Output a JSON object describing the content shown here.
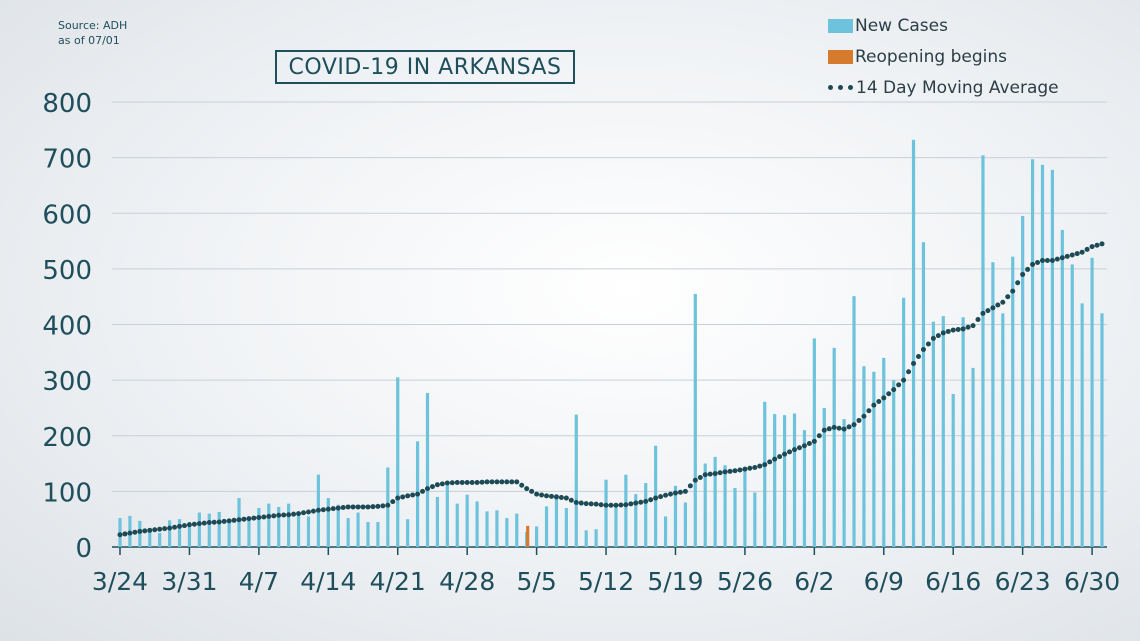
{
  "source": {
    "line1": "Source: ADH",
    "line2": "as of 07/01"
  },
  "title": "COVID-19 IN ARKANSAS",
  "legend": {
    "new_cases": "New Cases",
    "reopening": "Reopening begins",
    "moving_average": "14 Day Moving Average"
  },
  "colors": {
    "new_cases": "#6ec3dc",
    "reopening": "#d67a2e",
    "moving_average": "#1d4a55",
    "axis_text": "#1f4e5c"
  },
  "chart_data": {
    "type": "bar",
    "title": "COVID-19 IN ARKANSAS",
    "xlabel": "",
    "ylabel": "",
    "ylim": [
      0,
      800
    ],
    "yticks": [
      0,
      100,
      200,
      300,
      400,
      500,
      600,
      700,
      800
    ],
    "grid": true,
    "legend_position": "top-right",
    "start_date": "3/24",
    "xtick_labels": [
      "3/24",
      "3/31",
      "4/7",
      "4/14",
      "4/21",
      "4/28",
      "5/5",
      "5/12",
      "5/19",
      "5/26",
      "6/2",
      "6/9",
      "6/16",
      "6/23",
      "6/30"
    ],
    "highlight": {
      "date": "5/4",
      "label": "Reopening begins"
    },
    "series": [
      {
        "name": "New Cases",
        "type": "bar",
        "values": [
          52,
          56,
          47,
          34,
          25,
          48,
          50,
          45,
          62,
          60,
          63,
          50,
          88,
          50,
          70,
          78,
          72,
          78,
          60,
          55,
          130,
          88,
          76,
          52,
          62,
          45,
          45,
          143,
          305,
          50,
          190,
          277,
          90,
          115,
          78,
          94,
          82,
          64,
          66,
          52,
          60,
          27,
          37,
          73,
          95,
          70,
          238,
          30,
          32,
          121,
          75,
          130,
          95,
          115,
          182,
          55,
          110,
          80,
          455,
          150,
          162,
          147,
          106,
          142,
          98,
          261,
          239,
          237,
          240,
          210,
          375,
          250,
          358,
          230,
          451,
          325,
          315,
          340,
          300,
          448,
          732,
          548,
          405,
          415,
          275,
          413,
          322,
          704,
          512,
          420,
          522,
          595,
          697,
          687,
          678,
          570,
          508,
          438,
          520,
          420
        ]
      },
      {
        "name": "14 Day Moving Average",
        "type": "line",
        "values": [
          22,
          25,
          28,
          30,
          32,
          34,
          37,
          40,
          42,
          44,
          45,
          47,
          49,
          51,
          53,
          55,
          57,
          58,
          60,
          63,
          66,
          68,
          70,
          72,
          72,
          72,
          73,
          75,
          88,
          92,
          95,
          105,
          112,
          115,
          116,
          116,
          116,
          117,
          117,
          117,
          117,
          105,
          95,
          92,
          90,
          88,
          80,
          78,
          77,
          75,
          75,
          76,
          79,
          82,
          88,
          93,
          97,
          100,
          120,
          130,
          132,
          135,
          137,
          140,
          143,
          148,
          158,
          167,
          175,
          182,
          190,
          210,
          215,
          212,
          220,
          235,
          255,
          268,
          283,
          300,
          330,
          355,
          375,
          385,
          390,
          392,
          398,
          420,
          430,
          440,
          460,
          490,
          508,
          515,
          515,
          520,
          525,
          530,
          540,
          545
        ]
      }
    ]
  }
}
